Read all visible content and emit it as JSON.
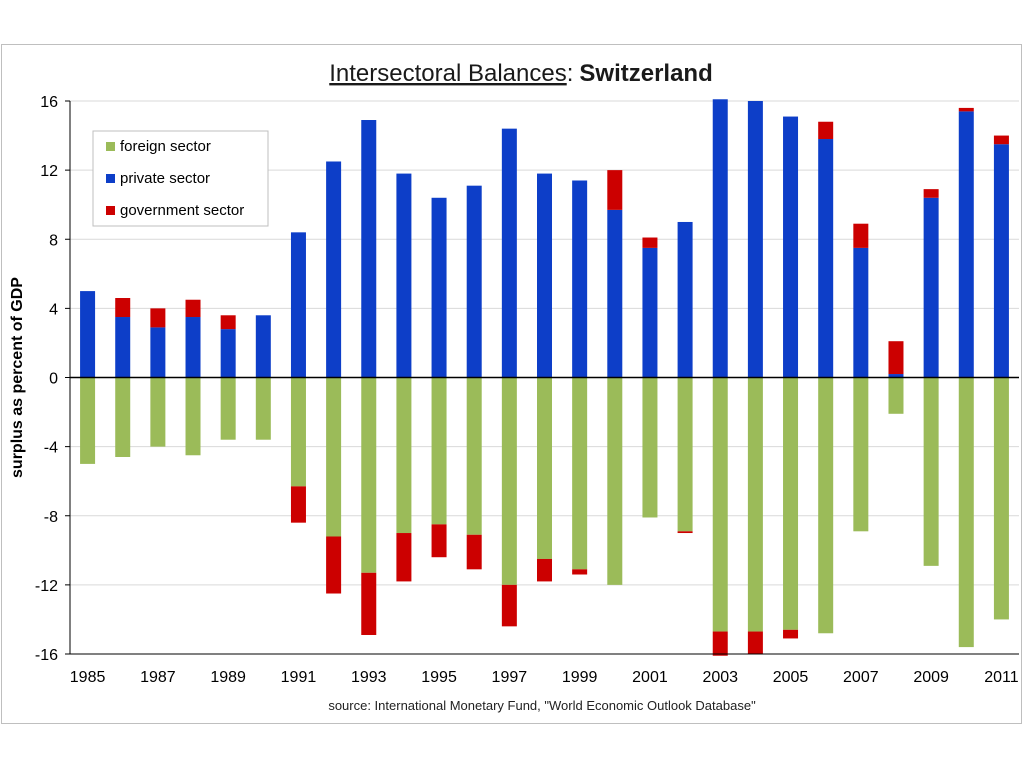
{
  "chart_data": {
    "type": "bar",
    "stacked": true,
    "title_underlined": "Intersectoral Balances",
    "title_separator": ":",
    "title_bold": "Switzerland",
    "ylabel": "surplus as percent of GDP",
    "source": "source:  International Monetary Fund, \"World Economic Outlook Database\"",
    "ylim": [
      -16,
      16
    ],
    "yticks": [
      "16",
      "12",
      "8",
      "4",
      "0",
      "-4",
      "-8",
      "-12",
      "-16"
    ],
    "ytick_values": [
      16,
      12,
      8,
      4,
      0,
      -4,
      -8,
      -12,
      -16
    ],
    "grid": true,
    "legend_position": "top-left",
    "categories": [
      "1985",
      "1986",
      "1987",
      "1988",
      "1989",
      "1990",
      "1991",
      "1992",
      "1993",
      "1994",
      "1995",
      "1996",
      "1997",
      "1998",
      "1999",
      "2000",
      "2001",
      "2002",
      "2003",
      "2004",
      "2005",
      "2006",
      "2007",
      "2008",
      "2009",
      "2010",
      "2011"
    ],
    "xtick_labels": [
      "1985",
      "1987",
      "1989",
      "1991",
      "1993",
      "1995",
      "1997",
      "1999",
      "2001",
      "2003",
      "2005",
      "2007",
      "2009",
      "2011"
    ],
    "series": [
      {
        "name": "foreign sector",
        "color": "#9bbb59",
        "values": [
          -5.0,
          -4.6,
          -4.0,
          -4.5,
          -3.6,
          -3.6,
          -6.3,
          -9.2,
          -11.3,
          -9.0,
          -8.5,
          -9.1,
          -12.0,
          -10.5,
          -11.1,
          -12.0,
          -8.1,
          -8.9,
          -14.7,
          -14.7,
          -14.6,
          -14.8,
          -8.9,
          -2.1,
          -10.9,
          -15.6,
          -14.0
        ]
      },
      {
        "name": "private sector",
        "color": "#0d3ec8",
        "values": [
          5.0,
          3.5,
          2.9,
          3.5,
          2.8,
          3.6,
          8.4,
          12.5,
          14.9,
          11.8,
          10.4,
          11.1,
          14.4,
          11.8,
          11.4,
          9.7,
          7.5,
          9.0,
          16.1,
          16.0,
          15.1,
          13.8,
          7.5,
          0.2,
          10.4,
          15.4,
          13.5
        ]
      },
      {
        "name": "government sector",
        "color": "#cc0000",
        "values": [
          0.0,
          1.1,
          1.1,
          1.0,
          0.8,
          0.0,
          -2.1,
          -3.3,
          -3.6,
          -2.8,
          -1.9,
          -2.0,
          -2.4,
          -1.3,
          -0.3,
          2.3,
          0.6,
          -0.1,
          -1.4,
          -1.3,
          -0.5,
          1.0,
          1.4,
          1.9,
          0.5,
          0.2,
          0.5
        ]
      }
    ]
  }
}
